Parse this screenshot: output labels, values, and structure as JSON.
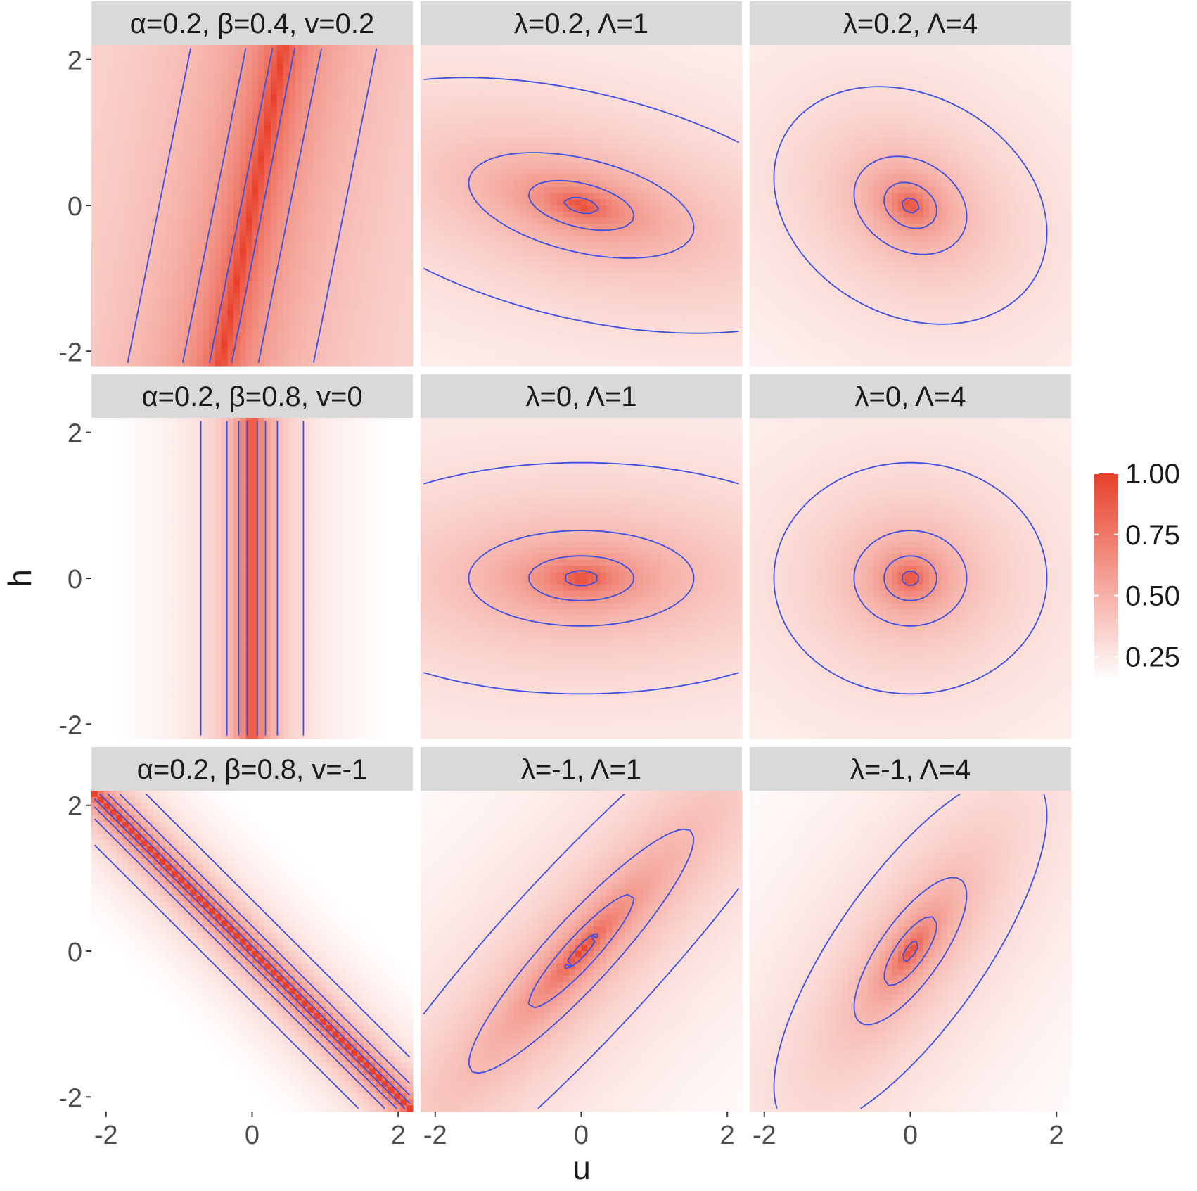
{
  "chart_data": {
    "type": "heatmap",
    "xlabel": "u",
    "ylabel": "h",
    "xlim": [
      -2.2,
      2.2
    ],
    "ylim": [
      -2.2,
      2.2
    ],
    "x_ticks": [
      "-2",
      "0",
      "2"
    ],
    "y_ticks": [
      "-2",
      "0",
      "2"
    ],
    "x_tick_values": [
      -2,
      0,
      2
    ],
    "y_tick_values": [
      -2,
      0,
      2
    ],
    "colors": {
      "low": "#ffffff",
      "high": "#e8402a",
      "contour": "#3b4fe0",
      "strip": "#d9d9d9"
    },
    "legend": {
      "position": "right",
      "labels": [
        "1.00",
        "0.75",
        "0.50",
        "0.25"
      ],
      "values": [
        1.0,
        0.75,
        0.5,
        0.25
      ],
      "range": [
        0.15,
        1.0
      ]
    },
    "panels": [
      {
        "title": "α=0.2, β=0.4, v=0.2",
        "kind": "band",
        "slope_u": 1.0,
        "slope_h": -0.2,
        "alpha": 0.2,
        "beta": 0.4
      },
      {
        "title": "λ=0.2, Λ=1",
        "kind": "ellipse",
        "lam": 0.2,
        "Lam": 1,
        "alpha": 0.2,
        "beta": 0.8
      },
      {
        "title": "λ=0.2, Λ=4",
        "kind": "ellipse",
        "lam": 0.2,
        "Lam": 4,
        "alpha": 0.2,
        "beta": 0.8
      },
      {
        "title": "α=0.2, β=0.8, v=0",
        "kind": "band",
        "slope_u": 1.0,
        "slope_h": 0.0,
        "alpha": 0.2,
        "beta": 0.8
      },
      {
        "title": "λ=0, Λ=1",
        "kind": "ellipse",
        "lam": 0,
        "Lam": 1,
        "alpha": 0.2,
        "beta": 0.8
      },
      {
        "title": "λ=0, Λ=4",
        "kind": "ellipse",
        "lam": 0,
        "Lam": 4,
        "alpha": 0.2,
        "beta": 0.8
      },
      {
        "title": "α=0.2, β=0.8, v=-1",
        "kind": "band",
        "slope_u": 1.0,
        "slope_h": 1.0,
        "alpha": 0.2,
        "beta": 0.8
      },
      {
        "title": "λ=-1, Λ=1",
        "kind": "ellipse",
        "lam": -1,
        "Lam": 1,
        "alpha": 0.2,
        "beta": 0.8
      },
      {
        "title": "λ=-1, Λ=4",
        "kind": "ellipse",
        "lam": -1,
        "Lam": 4,
        "alpha": 0.2,
        "beta": 0.8
      }
    ]
  }
}
